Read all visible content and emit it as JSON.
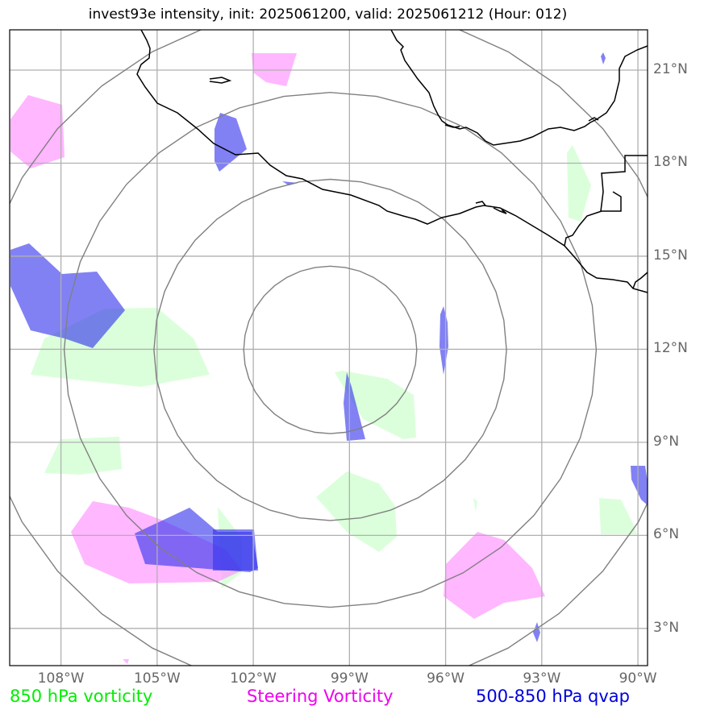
{
  "title": "invest93e intensity, init: 2025061200, valid: 2025061212 (Hour: 012)",
  "map": {
    "lon_range": [
      -109.6,
      -89.7
    ],
    "lat_range": [
      1.8,
      22.3
    ],
    "lon_ticks": [
      {
        "value": -108,
        "label": "108°W"
      },
      {
        "value": -105,
        "label": "105°W"
      },
      {
        "value": -102,
        "label": "102°W"
      },
      {
        "value": -99,
        "label": "99°W"
      },
      {
        "value": -96,
        "label": "96°W"
      },
      {
        "value": -93,
        "label": "93°W"
      },
      {
        "value": -90,
        "label": "90°W"
      }
    ],
    "lat_ticks": [
      {
        "value": 21,
        "label": "21°N"
      },
      {
        "value": 18,
        "label": "18°N"
      },
      {
        "value": 15,
        "label": "15°N"
      },
      {
        "value": 12,
        "label": "12°N"
      },
      {
        "value": 9,
        "label": "9°N"
      },
      {
        "value": 6,
        "label": "6°N"
      },
      {
        "value": 3,
        "label": "3°N"
      }
    ],
    "range_rings": {
      "center": [
        -99.6,
        11.98
      ],
      "radii_deg": [
        2.7,
        5.5,
        8.3,
        11.1
      ]
    },
    "colors": {
      "vort850": "#ccffcc",
      "steering": "#ff99ff",
      "qvap": "#3333ee",
      "coast": "#000000",
      "grid": "#b0b0b0",
      "rings": "#808080"
    }
  },
  "legend": [
    {
      "label": "850 hPa vorticity",
      "color": "#00ee00"
    },
    {
      "label": "Steering Vorticity",
      "color": "#ee00ee"
    },
    {
      "label": "500-850 hPa qvap",
      "color": "#0000dd"
    }
  ]
}
